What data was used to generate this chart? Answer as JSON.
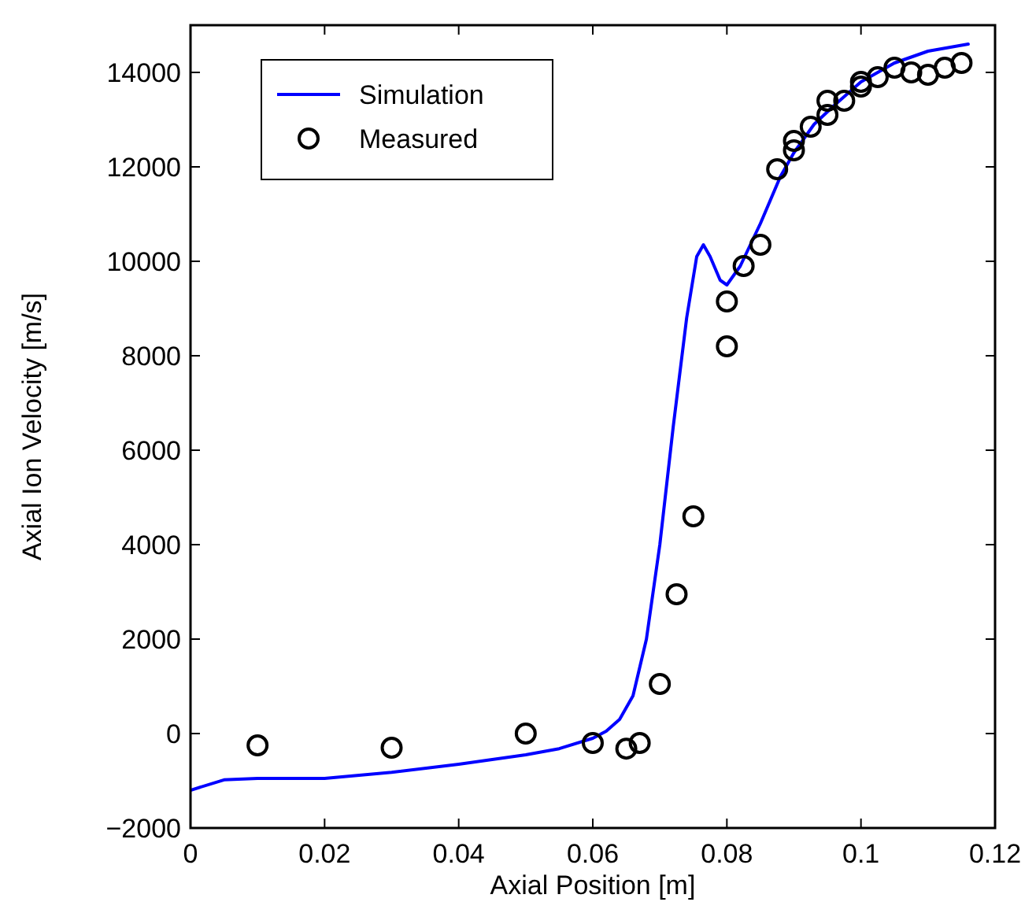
{
  "chart_data": {
    "type": "line",
    "xlabel": "Axial Position [m]",
    "ylabel": "Axial Ion Velocity [m/s]",
    "xlim": [
      0,
      0.12
    ],
    "xticks": [
      0,
      0.02,
      0.04,
      0.06,
      0.08,
      0.1,
      0.12
    ],
    "ylim": [
      -2000,
      15000
    ],
    "yticks": [
      -2000,
      0,
      2000,
      4000,
      6000,
      8000,
      10000,
      12000,
      14000
    ],
    "legend": "top left",
    "grid": false,
    "series": [
      {
        "name": "Simulation",
        "color": "#0000ff",
        "marker": "none",
        "line_style": "solid",
        "x": [
          0,
          0.005,
          0.01,
          0.02,
          0.03,
          0.04,
          0.05,
          0.055,
          0.06,
          0.062,
          0.064,
          0.066,
          0.068,
          0.07,
          0.072,
          0.074,
          0.0755,
          0.0765,
          0.0775,
          0.079,
          0.08,
          0.082,
          0.085,
          0.088,
          0.09,
          0.093,
          0.096,
          0.1,
          0.105,
          0.11,
          0.116
        ],
        "values": [
          -1200,
          -980,
          -950,
          -950,
          -820,
          -650,
          -450,
          -320,
          -100,
          50,
          300,
          800,
          2000,
          4000,
          6500,
          8800,
          10100,
          10350,
          10100,
          9600,
          9500,
          9900,
          10800,
          11800,
          12300,
          12900,
          13300,
          13800,
          14200,
          14450,
          14600
        ]
      },
      {
        "name": "Measured",
        "type": "scatter",
        "color": "#000000",
        "marker": "circle",
        "x": [
          0.01,
          0.03,
          0.05,
          0.06,
          0.065,
          0.067,
          0.07,
          0.0725,
          0.075,
          0.08,
          0.08,
          0.0825,
          0.085,
          0.0875,
          0.09,
          0.09,
          0.0925,
          0.095,
          0.095,
          0.0975,
          0.1,
          0.1,
          0.1025,
          0.105,
          0.1075,
          0.11,
          0.1125,
          0.115
        ],
        "values": [
          -250,
          -300,
          0,
          -200,
          -320,
          -200,
          1050,
          2950,
          4600,
          8200,
          9150,
          9900,
          10350,
          11950,
          12350,
          12550,
          12850,
          13100,
          13400,
          13400,
          13700,
          13800,
          13900,
          14100,
          14000,
          13950,
          14100,
          14200
        ]
      }
    ]
  }
}
